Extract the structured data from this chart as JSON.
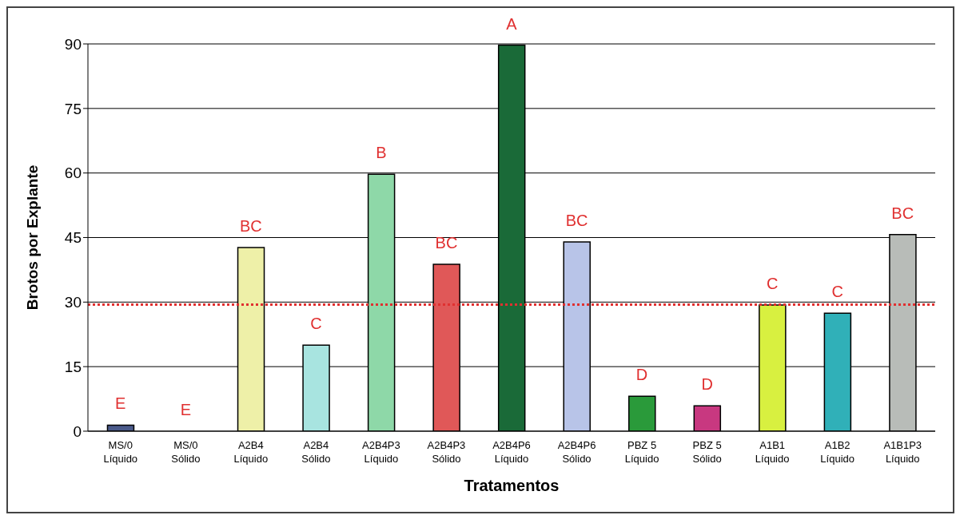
{
  "chart_data": {
    "type": "bar",
    "xlabel": "Tratamentos",
    "ylabel": "Brotos por Explante",
    "categories": [
      "MS/0\nLíquido",
      "MS/0\nSólido",
      "A2B4\nLíquido",
      "A2B4\nSólido",
      "A2B4P3\nLíquido",
      "A2B4P3\nSólido",
      "A2B4P6\nLíquido",
      "A2B4P6\nSólido",
      "PBZ 5\nLíquido",
      "PBZ 5\nSólido",
      "A1B1\nLíquido",
      "A1B2\nLíquido",
      "A1B1P3\nLíquido"
    ],
    "values": [
      1.4,
      0,
      42.7,
      20,
      59.7,
      38.8,
      89.7,
      44,
      8.1,
      5.9,
      29.3,
      27.4,
      45.7
    ],
    "colors": [
      "#4a5a8a",
      "#ffffff",
      "#eef0a8",
      "#a8e4e0",
      "#8ed8a8",
      "#e05858",
      "#1a6a38",
      "#b8c4e8",
      "#2a9a3a",
      "#c83880",
      "#d8f040",
      "#30b0b8",
      "#b8bcb8"
    ],
    "ylim": [
      0,
      90
    ],
    "yticks": [
      0,
      15,
      30,
      45,
      60,
      75,
      90
    ],
    "grid": "y",
    "ref_lines": [
      {
        "axis": "y",
        "value": 29.4,
        "color": "#e03030",
        "line_style": "dotted"
      }
    ],
    "annotations": [
      {
        "text": "E",
        "x": "MS/0\nLíquido",
        "y": 1.4
      },
      {
        "text": "E",
        "x": "MS/0\nSólido",
        "y": 0
      },
      {
        "text": "BC",
        "x": "A2B4\nLíquido",
        "y": 42.7
      },
      {
        "text": "C",
        "x": "A2B4\nSólido",
        "y": 20
      },
      {
        "text": "B",
        "x": "A2B4P3\nLíquido",
        "y": 59.7
      },
      {
        "text": "BC",
        "x": "A2B4P3\nSólido",
        "y": 38.8
      },
      {
        "text": "A",
        "x": "A2B4P6\nLíquido",
        "y": 89.7
      },
      {
        "text": "BC",
        "x": "A2B4P6\nSólido",
        "y": 44
      },
      {
        "text": "D",
        "x": "PBZ 5\nLíquido",
        "y": 8.1
      },
      {
        "text": "D",
        "x": "PBZ 5\nSólido",
        "y": 5.9
      },
      {
        "text": "C",
        "x": "A1B1\nLíquido",
        "y": 29.3
      },
      {
        "text": "C",
        "x": "A1B2\nLíquido",
        "y": 27.4
      },
      {
        "text": "BC",
        "x": "A1B1P3\nLíquido",
        "y": 45.7
      }
    ]
  }
}
